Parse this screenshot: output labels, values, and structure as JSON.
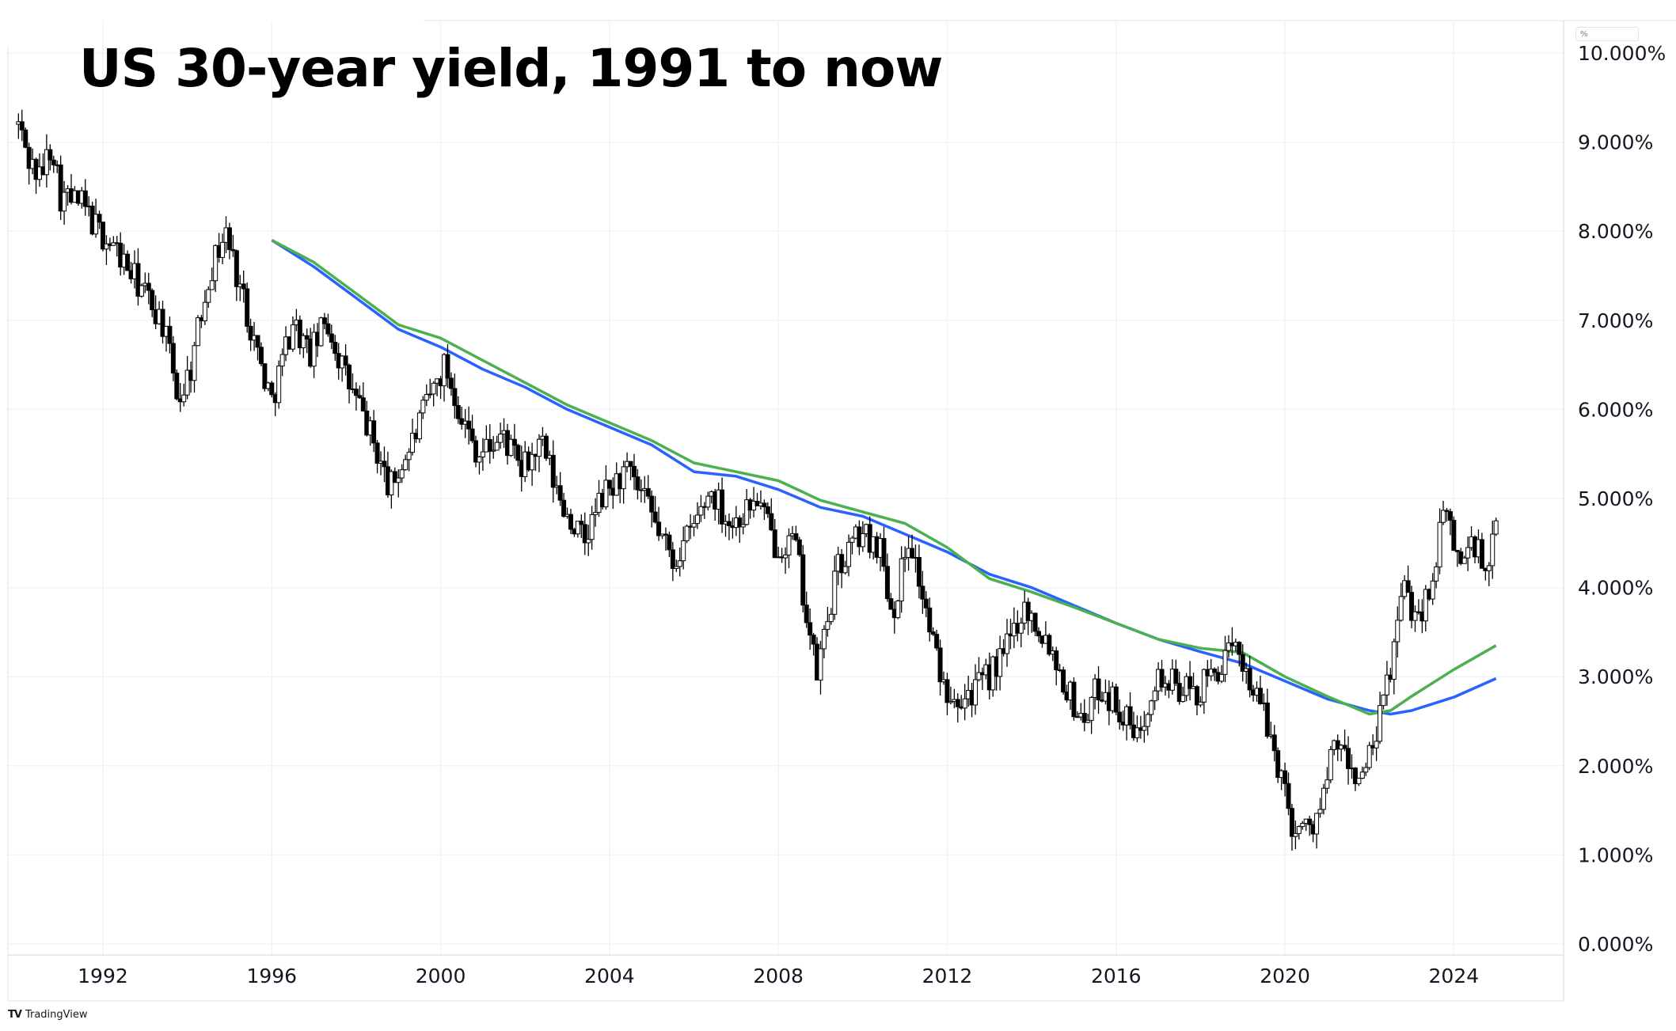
{
  "title": "US 30-year yield, 1991 to now",
  "unit_label": "%",
  "brand": "TradingView",
  "brand_logo": "TV",
  "colors": {
    "candle": "#000000",
    "ma_blue": "#2962ff",
    "ma_green": "#4caf50",
    "grid": "#f0f3fa",
    "axis_text": "#131722"
  },
  "chart_data": {
    "type": "line",
    "title": "US 30-year yield, 1991 to now",
    "xlabel": "",
    "ylabel": "",
    "x_ticks": [
      "1992",
      "1996",
      "2000",
      "2004",
      "2008",
      "2012",
      "2016",
      "2020",
      "2024"
    ],
    "y_ticks": [
      "0.000%",
      "1.000%",
      "2.000%",
      "3.000%",
      "4.000%",
      "5.000%",
      "6.000%",
      "7.000%",
      "8.000%",
      "9.000%",
      "10.000%"
    ],
    "xlim": [
      1989.75,
      2026.6
    ],
    "ylim": [
      0,
      10
    ],
    "grid": true,
    "price_series": {
      "name": "",
      "style": "candles",
      "points": [
        [
          1990.0,
          9.2
        ],
        [
          1990.25,
          8.8
        ],
        [
          1990.5,
          8.6
        ],
        [
          1990.8,
          9.0
        ],
        [
          1991.0,
          8.4
        ],
        [
          1991.5,
          8.3
        ],
        [
          1991.9,
          8.0
        ],
        [
          1992.3,
          7.8
        ],
        [
          1992.7,
          7.5
        ],
        [
          1993.0,
          7.3
        ],
        [
          1993.4,
          7.0
        ],
        [
          1993.8,
          6.1
        ],
        [
          1994.1,
          6.5
        ],
        [
          1994.5,
          7.5
        ],
        [
          1994.9,
          8.0
        ],
        [
          1995.3,
          7.3
        ],
        [
          1995.8,
          6.4
        ],
        [
          1996.0,
          6.1
        ],
        [
          1996.5,
          7.0
        ],
        [
          1996.9,
          6.6
        ],
        [
          1997.3,
          7.0
        ],
        [
          1997.8,
          6.3
        ],
        [
          1998.2,
          5.9
        ],
        [
          1998.8,
          5.1
        ],
        [
          1999.3,
          5.6
        ],
        [
          1999.8,
          6.2
        ],
        [
          2000.1,
          6.5
        ],
        [
          2000.6,
          5.8
        ],
        [
          2000.9,
          5.5
        ],
        [
          2001.5,
          5.7
        ],
        [
          2001.9,
          5.3
        ],
        [
          2002.4,
          5.6
        ],
        [
          2002.8,
          5.0
        ],
        [
          2003.4,
          4.5
        ],
        [
          2003.8,
          5.0
        ],
        [
          2004.4,
          5.3
        ],
        [
          2004.9,
          4.9
        ],
        [
          2005.5,
          4.3
        ],
        [
          2005.9,
          4.6
        ],
        [
          2006.4,
          5.1
        ],
        [
          2006.9,
          4.7
        ],
        [
          2007.5,
          5.0
        ],
        [
          2007.9,
          4.5
        ],
        [
          2008.4,
          4.5
        ],
        [
          2008.9,
          3.0
        ],
        [
          2009.4,
          4.2
        ],
        [
          2009.9,
          4.6
        ],
        [
          2010.4,
          4.5
        ],
        [
          2010.7,
          3.7
        ],
        [
          2011.1,
          4.6
        ],
        [
          2011.6,
          3.5
        ],
        [
          2011.9,
          2.9
        ],
        [
          2012.4,
          2.8
        ],
        [
          2012.8,
          2.9
        ],
        [
          2013.3,
          3.2
        ],
        [
          2013.8,
          3.8
        ],
        [
          2014.4,
          3.4
        ],
        [
          2014.9,
          2.8
        ],
        [
          2015.2,
          2.5
        ],
        [
          2015.6,
          2.9
        ],
        [
          2016.0,
          2.7
        ],
        [
          2016.5,
          2.3
        ],
        [
          2016.9,
          3.0
        ],
        [
          2017.4,
          2.9
        ],
        [
          2017.9,
          2.8
        ],
        [
          2018.4,
          3.1
        ],
        [
          2018.9,
          3.3
        ],
        [
          2019.4,
          2.7
        ],
        [
          2019.8,
          2.1
        ],
        [
          2020.2,
          1.3
        ],
        [
          2020.6,
          1.3
        ],
        [
          2020.9,
          1.6
        ],
        [
          2021.2,
          2.3
        ],
        [
          2021.6,
          1.9
        ],
        [
          2021.9,
          1.9
        ],
        [
          2022.2,
          2.4
        ],
        [
          2022.5,
          3.1
        ],
        [
          2022.8,
          4.0
        ],
        [
          2023.1,
          3.7
        ],
        [
          2023.4,
          3.9
        ],
        [
          2023.8,
          4.9
        ],
        [
          2024.1,
          4.3
        ],
        [
          2024.5,
          4.5
        ],
        [
          2024.8,
          4.1
        ],
        [
          2025.05,
          4.8
        ]
      ]
    },
    "series": [
      {
        "name": "",
        "color": "#2962ff",
        "x": [
          1996.0,
          1997.0,
          1998.0,
          1999.0,
          2000.0,
          2001.0,
          2002.0,
          2003.0,
          2004.0,
          2005.0,
          2006.0,
          2007.0,
          2008.0,
          2009.0,
          2010.0,
          2011.0,
          2012.0,
          2013.0,
          2014.0,
          2015.0,
          2016.0,
          2017.0,
          2018.0,
          2019.0,
          2020.0,
          2021.0,
          2022.0,
          2022.5,
          2023.0,
          2024.0,
          2025.0
        ],
        "values": [
          7.9,
          7.6,
          7.25,
          6.9,
          6.7,
          6.45,
          6.25,
          6.0,
          5.8,
          5.6,
          5.3,
          5.25,
          5.1,
          4.9,
          4.8,
          4.6,
          4.4,
          4.15,
          4.0,
          3.8,
          3.6,
          3.42,
          3.28,
          3.15,
          2.95,
          2.75,
          2.62,
          2.58,
          2.62,
          2.77,
          2.98
        ]
      },
      {
        "name": "",
        "color": "#4caf50",
        "x": [
          1996.0,
          1997.0,
          1998.0,
          1999.0,
          2000.0,
          2001.0,
          2002.0,
          2003.0,
          2004.0,
          2005.0,
          2006.0,
          2007.0,
          2008.0,
          2009.0,
          2010.0,
          2011.0,
          2012.0,
          2013.0,
          2014.0,
          2015.0,
          2016.0,
          2017.0,
          2018.0,
          2019.0,
          2020.0,
          2021.0,
          2022.0,
          2022.5,
          2023.0,
          2024.0,
          2025.0
        ],
        "values": [
          7.9,
          7.65,
          7.3,
          6.95,
          6.8,
          6.55,
          6.3,
          6.05,
          5.85,
          5.65,
          5.4,
          5.3,
          5.2,
          4.98,
          4.85,
          4.72,
          4.45,
          4.1,
          3.95,
          3.78,
          3.6,
          3.42,
          3.32,
          3.27,
          3.0,
          2.78,
          2.58,
          2.62,
          2.78,
          3.08,
          3.35
        ]
      }
    ]
  }
}
